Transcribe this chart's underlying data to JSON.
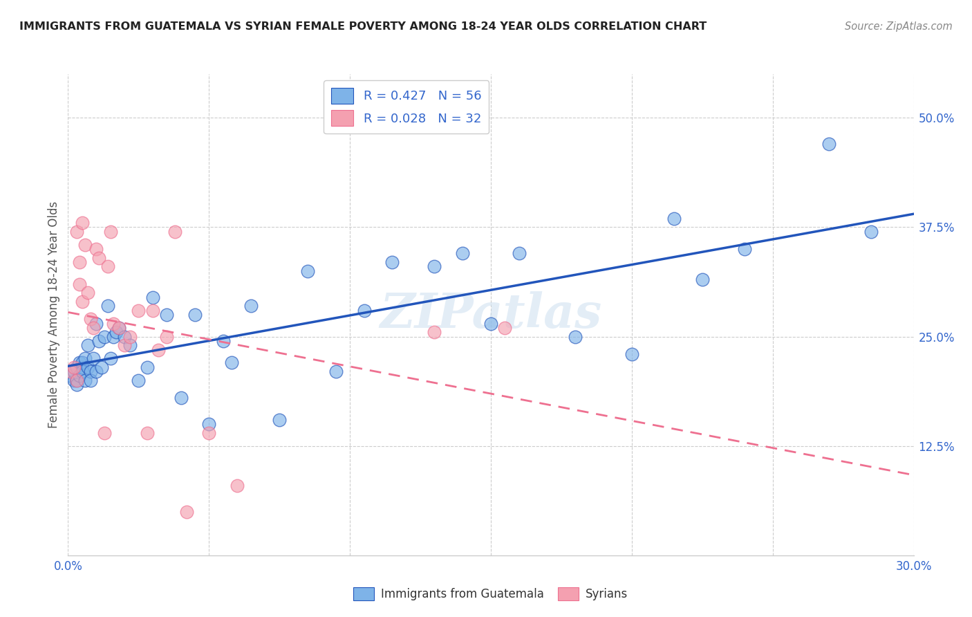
{
  "title": "IMMIGRANTS FROM GUATEMALA VS SYRIAN FEMALE POVERTY AMONG 18-24 YEAR OLDS CORRELATION CHART",
  "source": "Source: ZipAtlas.com",
  "ylabel": "Female Poverty Among 18-24 Year Olds",
  "x_min": 0.0,
  "x_max": 0.3,
  "y_min": 0.0,
  "y_max": 0.55,
  "x_ticks": [
    0.0,
    0.05,
    0.1,
    0.15,
    0.2,
    0.25,
    0.3
  ],
  "y_ticks_right": [
    0.125,
    0.25,
    0.375,
    0.5
  ],
  "y_tick_labels_right": [
    "12.5%",
    "25.0%",
    "37.5%",
    "50.0%"
  ],
  "watermark": "ZIPatlas",
  "legend_r1": "R = 0.427",
  "legend_n1": "N = 56",
  "legend_r2": "R = 0.028",
  "legend_n2": "N = 32",
  "color_guatemala": "#7EB3E8",
  "color_syria": "#F4A0B0",
  "color_trendline_guatemala": "#2255BB",
  "color_trendline_syria": "#EE7090",
  "guatemala_x": [
    0.001,
    0.002,
    0.002,
    0.003,
    0.003,
    0.003,
    0.004,
    0.004,
    0.005,
    0.005,
    0.005,
    0.006,
    0.006,
    0.007,
    0.007,
    0.008,
    0.008,
    0.009,
    0.01,
    0.01,
    0.011,
    0.012,
    0.013,
    0.014,
    0.015,
    0.016,
    0.017,
    0.018,
    0.02,
    0.022,
    0.025,
    0.028,
    0.03,
    0.035,
    0.04,
    0.045,
    0.05,
    0.055,
    0.058,
    0.065,
    0.075,
    0.085,
    0.095,
    0.105,
    0.115,
    0.13,
    0.14,
    0.15,
    0.16,
    0.18,
    0.2,
    0.215,
    0.225,
    0.24,
    0.27,
    0.285
  ],
  "guatemala_y": [
    0.205,
    0.2,
    0.21,
    0.215,
    0.2,
    0.195,
    0.22,
    0.205,
    0.215,
    0.22,
    0.21,
    0.2,
    0.225,
    0.215,
    0.24,
    0.21,
    0.2,
    0.225,
    0.265,
    0.21,
    0.245,
    0.215,
    0.25,
    0.285,
    0.225,
    0.25,
    0.255,
    0.26,
    0.25,
    0.24,
    0.2,
    0.215,
    0.295,
    0.275,
    0.18,
    0.275,
    0.15,
    0.245,
    0.22,
    0.285,
    0.155,
    0.325,
    0.21,
    0.28,
    0.335,
    0.33,
    0.345,
    0.265,
    0.345,
    0.25,
    0.23,
    0.385,
    0.315,
    0.35,
    0.47,
    0.37
  ],
  "syria_x": [
    0.001,
    0.002,
    0.003,
    0.003,
    0.004,
    0.004,
    0.005,
    0.005,
    0.006,
    0.007,
    0.008,
    0.009,
    0.01,
    0.011,
    0.013,
    0.014,
    0.015,
    0.016,
    0.018,
    0.02,
    0.022,
    0.025,
    0.028,
    0.03,
    0.032,
    0.035,
    0.038,
    0.042,
    0.05,
    0.06,
    0.13,
    0.155
  ],
  "syria_y": [
    0.21,
    0.215,
    0.2,
    0.37,
    0.335,
    0.31,
    0.38,
    0.29,
    0.355,
    0.3,
    0.27,
    0.26,
    0.35,
    0.34,
    0.14,
    0.33,
    0.37,
    0.265,
    0.26,
    0.24,
    0.25,
    0.28,
    0.14,
    0.28,
    0.235,
    0.25,
    0.37,
    0.05,
    0.14,
    0.08,
    0.255,
    0.26
  ]
}
